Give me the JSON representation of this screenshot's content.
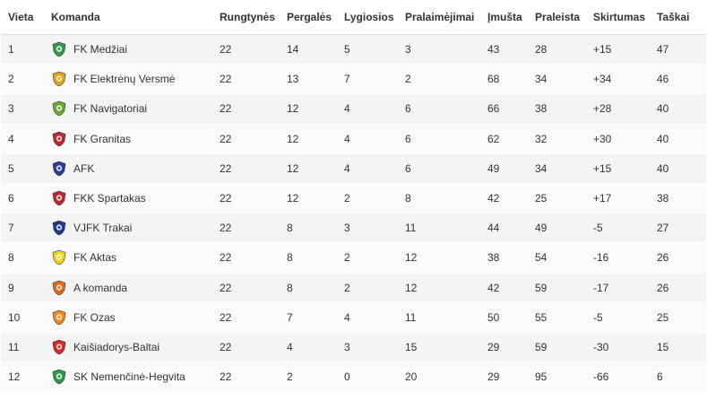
{
  "table": {
    "headers": [
      "Vieta",
      "Komanda",
      "Rungtynės",
      "Pergalės",
      "Lygiosios",
      "Pralaimėjimai",
      "Įmušta",
      "Praleista",
      "Skirtumas",
      "Taškai"
    ],
    "rows": [
      {
        "pos": "1",
        "team": "FK Medžiai",
        "played": "22",
        "won": "14",
        "drawn": "5",
        "lost": "3",
        "gf": "43",
        "ga": "28",
        "diff": "+15",
        "pts": "47",
        "logo": "medziai-crest-icon",
        "color": "#2e9a4a"
      },
      {
        "pos": "2",
        "team": "FK Elektrėnų Versmė",
        "played": "22",
        "won": "13",
        "drawn": "7",
        "lost": "2",
        "gf": "68",
        "ga": "34",
        "diff": "+34",
        "pts": "46",
        "logo": "versme-crest-icon",
        "color": "#e8a21c"
      },
      {
        "pos": "3",
        "team": "FK Navigatoriai",
        "played": "22",
        "won": "12",
        "drawn": "4",
        "lost": "6",
        "gf": "66",
        "ga": "38",
        "diff": "+28",
        "pts": "40",
        "logo": "navigatoriai-crest-icon",
        "color": "#6aa832"
      },
      {
        "pos": "4",
        "team": "FK Granitas",
        "played": "22",
        "won": "12",
        "drawn": "4",
        "lost": "6",
        "gf": "62",
        "ga": "32",
        "diff": "+30",
        "pts": "40",
        "logo": "granitas-crest-icon",
        "color": "#c0262d"
      },
      {
        "pos": "5",
        "team": "AFK",
        "played": "22",
        "won": "12",
        "drawn": "4",
        "lost": "6",
        "gf": "49",
        "ga": "34",
        "diff": "+15",
        "pts": "40",
        "logo": "afk-crest-icon",
        "color": "#2a3f8f"
      },
      {
        "pos": "6",
        "team": "FKK Spartakas",
        "played": "22",
        "won": "12",
        "drawn": "2",
        "lost": "8",
        "gf": "42",
        "ga": "25",
        "diff": "+17",
        "pts": "38",
        "logo": "spartakas-crest-icon",
        "color": "#c0262d"
      },
      {
        "pos": "7",
        "team": "VJFK Trakai",
        "played": "22",
        "won": "8",
        "drawn": "3",
        "lost": "11",
        "gf": "44",
        "ga": "49",
        "diff": "-5",
        "pts": "27",
        "logo": "trakai-crest-icon",
        "color": "#1f3c88"
      },
      {
        "pos": "8",
        "team": "FK Aktas",
        "played": "22",
        "won": "8",
        "drawn": "2",
        "lost": "12",
        "gf": "38",
        "ga": "54",
        "diff": "-16",
        "pts": "26",
        "logo": "aktas-crest-icon",
        "color": "#f2d21b"
      },
      {
        "pos": "9",
        "team": "A komanda",
        "played": "22",
        "won": "8",
        "drawn": "2",
        "lost": "12",
        "gf": "42",
        "ga": "59",
        "diff": "-17",
        "pts": "26",
        "logo": "a-komanda-crest-icon",
        "color": "#e06a1a"
      },
      {
        "pos": "10",
        "team": "FK Ozas",
        "played": "22",
        "won": "7",
        "drawn": "4",
        "lost": "11",
        "gf": "50",
        "ga": "55",
        "diff": "-5",
        "pts": "25",
        "logo": "ozas-crest-icon",
        "color": "#f08a1e"
      },
      {
        "pos": "11",
        "team": "Kaišiadorys-Baltai",
        "played": "22",
        "won": "4",
        "drawn": "3",
        "lost": "15",
        "gf": "29",
        "ga": "59",
        "diff": "-30",
        "pts": "15",
        "logo": "baltai-crest-icon",
        "color": "#d62828"
      },
      {
        "pos": "12",
        "team": "SK Nemenčinė-Hegvita",
        "played": "22",
        "won": "2",
        "drawn": "0",
        "lost": "20",
        "gf": "29",
        "ga": "95",
        "diff": "-66",
        "pts": "6",
        "logo": "hegvita-crest-icon",
        "color": "#2e9a4a"
      }
    ]
  }
}
